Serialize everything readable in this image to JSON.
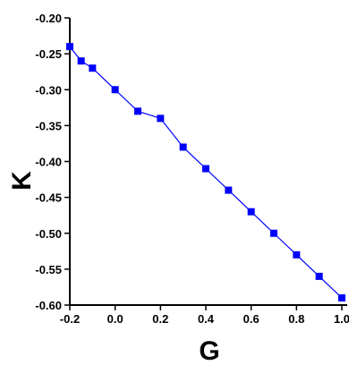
{
  "chart_data": {
    "type": "line",
    "title": "",
    "xlabel": "G",
    "ylabel": "K",
    "xlim": [
      -0.2,
      1.0
    ],
    "ylim": [
      -0.6,
      -0.2
    ],
    "x_ticks": [
      -0.2,
      0.0,
      0.2,
      0.4,
      0.6,
      0.8,
      1.0
    ],
    "x_tick_labels": [
      "-0.2",
      "0.0",
      "0.2",
      "0.4",
      "0.6",
      "0.8",
      "1.0"
    ],
    "y_ticks": [
      -0.2,
      -0.25,
      -0.3,
      -0.35,
      -0.4,
      -0.45,
      -0.5,
      -0.55,
      -0.6
    ],
    "y_tick_labels": [
      "-0.20",
      "-0.25",
      "-0.30",
      "-0.35",
      "-0.40",
      "-0.45",
      "-0.50",
      "-0.55",
      "-0.60"
    ],
    "grid": false,
    "series": [
      {
        "color": "#0000ff",
        "marker": "square",
        "x": [
          -0.2,
          -0.15,
          -0.1,
          0.0,
          0.1,
          0.2,
          0.3,
          0.4,
          0.5,
          0.6,
          0.7,
          0.8,
          0.9,
          1.0
        ],
        "y": [
          -0.24,
          -0.26,
          -0.27,
          -0.3,
          -0.33,
          -0.34,
          -0.38,
          -0.41,
          -0.44,
          -0.47,
          -0.5,
          -0.53,
          -0.56,
          -0.59
        ]
      }
    ]
  }
}
